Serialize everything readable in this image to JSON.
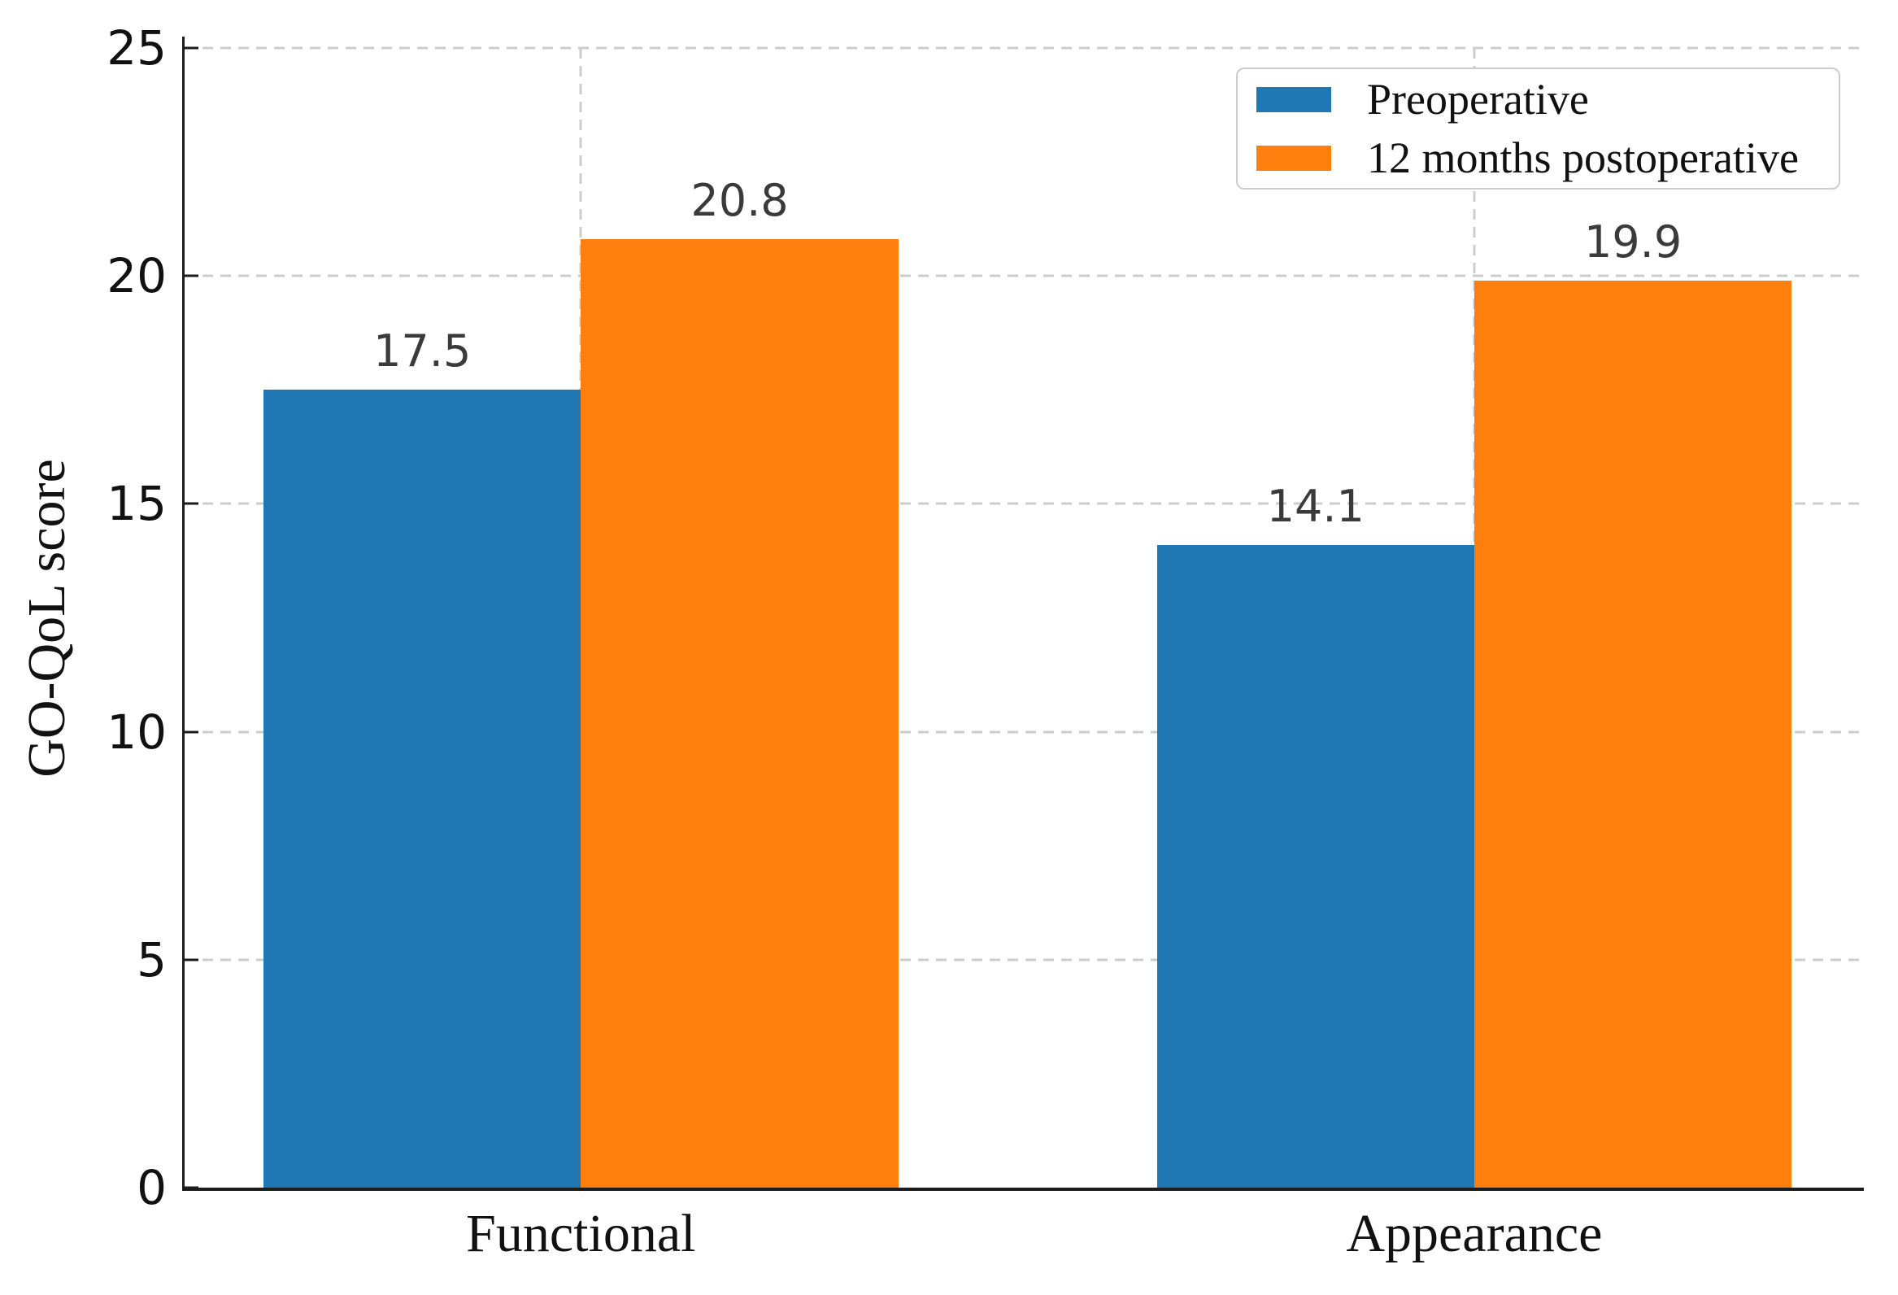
{
  "figure": {
    "background_color": "#ffffff",
    "spine_color": "#1c1c1c",
    "grid_color": "#cccccc",
    "tick_label_color": "#111111",
    "value_label_color": "#3a3a3a",
    "legend_border_color": "#cccccc"
  },
  "chart_data": {
    "type": "bar",
    "title": "",
    "xlabel": "",
    "ylabel": "GO-QoL score",
    "categories": [
      "Functional",
      "Appearance"
    ],
    "series": [
      {
        "name": "Preoperative",
        "color": "#1f77b4",
        "values": [
          17.5,
          14.1
        ]
      },
      {
        "name": "12 months postoperative",
        "color": "#ff7f0e",
        "values": [
          20.8,
          19.9
        ]
      }
    ],
    "ylim": [
      0,
      25
    ],
    "yticks": [
      0,
      5,
      10,
      15,
      20,
      25
    ],
    "grid": "dashed, both axes, drawn below bars",
    "legend_position": "upper right",
    "value_labels_shown": true
  }
}
